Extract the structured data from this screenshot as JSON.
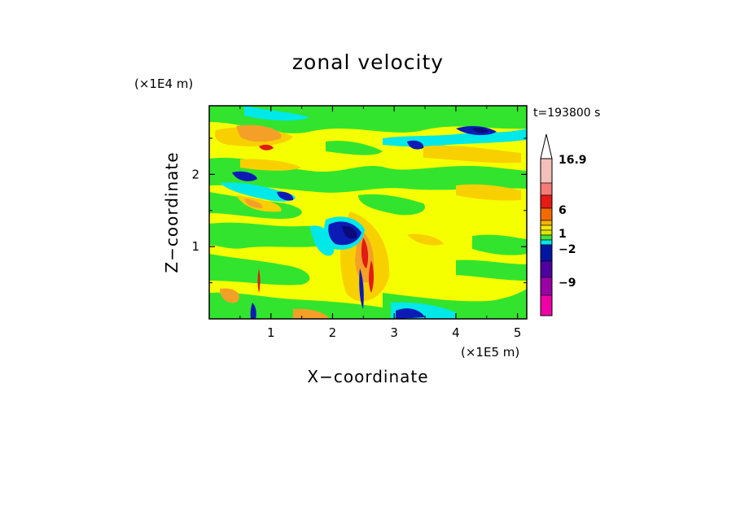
{
  "chart_data": {
    "type": "heatmap",
    "title": "zonal velocity",
    "xlabel": "X−coordinate",
    "ylabel": "Z−coordinate",
    "x_scale_label": "(×1E5 m)",
    "y_scale_label": "(×1E4 m)",
    "time_label": "t=193800 s",
    "xlim": [
      0,
      5.15
    ],
    "ylim": [
      0,
      2.95
    ],
    "x_ticks": [
      1,
      2,
      3,
      4,
      5
    ],
    "x_tick_labels": [
      "1",
      "2",
      "3",
      "4",
      "5"
    ],
    "y_ticks": [
      1,
      2
    ],
    "y_tick_labels": [
      "1",
      "2"
    ],
    "colorbar": {
      "levels_top_to_bottom": [
        "#f4c0ba",
        "#f47b76",
        "#e51b14",
        "#f26b00",
        "#f4b500",
        "#f5e800",
        "#dbe900",
        "#43e040",
        "#00e5e5",
        "#0016a3",
        "#5000a0",
        "#9a00a6",
        "#ef00a6"
      ],
      "tick_labels": [
        "16.9",
        "6",
        "1",
        "−2",
        "−9"
      ],
      "tick_values": [
        16.9,
        6,
        1,
        -2,
        -9
      ],
      "extend": "max"
    },
    "field_colors": {
      "background": "#f5ff00",
      "green": "#33e42e",
      "cyan": "#00e8e8",
      "orange": "#f4a028",
      "yellow_orange": "#f8d000",
      "blue": "#0c1bb5",
      "dark_blue": "#0a0a7a",
      "red": "#e21b13"
    }
  }
}
